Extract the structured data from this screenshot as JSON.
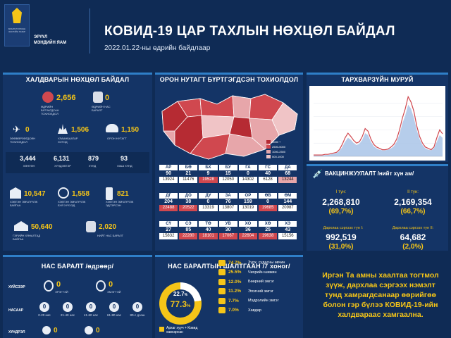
{
  "header": {
    "title": "КОВИД-19 ЦАР ТАХЛЫН НӨХЦӨЛ БАЙДАЛ",
    "subtitle": "2022.01.22-ны өдрийн байдлаар",
    "org_line1": "ЭРҮҮЛ",
    "org_line2": "МЭНДИЙН ЯАМ"
  },
  "infection": {
    "title": "ХАЛДВАРЫН НӨХЦӨЛ БАЙДАЛ",
    "confirmed_today": "2,656",
    "confirmed_today_label": "ӨДРИЙН БАТЛАГДСАН ТОХИОЛДОЛ",
    "deaths_today": "0",
    "deaths_today_label": "ӨДРИЙН НАС БАРАЛТ",
    "imported": "0",
    "imported_label": "ЗӨӨВӨРЛӨГДСӨН ТОХИОЛДОЛ",
    "ulaanbaatar": "1,506",
    "ulaanbaatar_label": "УЛААНБААТАР ХОТОД",
    "local": "1,150",
    "local_label": "ОРОН НУТАГТ",
    "row": [
      {
        "value": "3,444",
        "label": "ХӨНГӨН"
      },
      {
        "value": "6,131",
        "label": "ХҮНДЭВТЭР"
      },
      {
        "value": "879",
        "label": "ХҮНД"
      },
      {
        "value": "93",
        "label": "МАШ ХҮНД"
      }
    ],
    "hospital": "10,547",
    "hospital_label": "ХЭВТЭН ЭМЧЛҮҮЛЖ БАЙГАА",
    "children": "1,558",
    "children_label": "ХЭВТЭН ЭМЧЛҮҮЛЖ БУЙ ХҮҮХЭД",
    "discharged": "821",
    "discharged_label": "ХЭВТЭН ЭМЧЛҮҮЛЖ ЭДГЭРСЭН",
    "home": "50,640",
    "home_label": "ГЭРИЙН ХЯНАЛТАД БАЙГАА",
    "total_deaths": "2,020",
    "total_deaths_label": "НИЙТ НАС БАРАЛТ"
  },
  "regions": {
    "title": "ОРОН НУТАГТ БҮРТГЭГДСЭН ТОХИОЛДОЛ",
    "legend": [
      "АР",
      "БӨ",
      "БХ",
      "БУ",
      "ГА"
    ],
    "legend_counts": [
      "5000 +",
      "2500-5000",
      "1000-2500",
      "500-1000",
      "0-500"
    ],
    "rows": [
      [
        {
          "code": "АР",
          "today": "90",
          "total": "13924",
          "tone": "w"
        },
        {
          "code": "БӨ",
          "today": "21",
          "total": "11476",
          "tone": "w"
        },
        {
          "code": "БХ",
          "today": "9",
          "total": "19528",
          "tone": "r"
        },
        {
          "code": "БУ",
          "today": "15",
          "total": "12050",
          "tone": "w"
        },
        {
          "code": "ГА",
          "today": "0",
          "total": "14302",
          "tone": "w"
        },
        {
          "code": "ГС",
          "today": "40",
          "total": "6128",
          "tone": "w"
        },
        {
          "code": "ДА",
          "today": "68",
          "total": "13244",
          "tone": "p"
        }
      ],
      [
        {
          "code": "ДГ",
          "today": "204",
          "total": "22488",
          "tone": "r"
        },
        {
          "code": "ДО",
          "today": "38",
          "total": "20522",
          "tone": "r"
        },
        {
          "code": "ДУ",
          "today": "0",
          "total": "13319",
          "tone": "w"
        },
        {
          "code": "ЗА",
          "today": "76",
          "total": "13807",
          "tone": "w"
        },
        {
          "code": "ОР",
          "today": "159",
          "total": "13019",
          "tone": "w"
        },
        {
          "code": "ӨВ",
          "today": "0",
          "total": "19685",
          "tone": "r"
        },
        {
          "code": "ӨМ",
          "today": "144",
          "total": "20987",
          "tone": "w"
        }
      ],
      [
        {
          "code": "СҮ",
          "today": "27",
          "total": "15832",
          "tone": "w"
        },
        {
          "code": "СЭ",
          "today": "85",
          "total": "22280",
          "tone": "r"
        },
        {
          "code": "ТӨ",
          "today": "40",
          "total": "18101",
          "tone": "r"
        },
        {
          "code": "УВ",
          "today": "30",
          "total": "17067",
          "tone": "r"
        },
        {
          "code": "ХО",
          "today": "36",
          "total": "22604",
          "tone": "r"
        },
        {
          "code": "ХӨ",
          "today": "25",
          "total": "19638",
          "tone": "r"
        },
        {
          "code": "ХЭ",
          "today": "43",
          "total": "15156",
          "tone": "w"
        }
      ]
    ]
  },
  "curve": {
    "title": "ТАРХВАРЗҮЙН МУРУЙ",
    "line": [
      2,
      2,
      2,
      2,
      3,
      3,
      4,
      5,
      6,
      10,
      18,
      28,
      35,
      30,
      24,
      20,
      22,
      30,
      42,
      38,
      26,
      18,
      14,
      12,
      10,
      10,
      11,
      14,
      18,
      26,
      40,
      58,
      72,
      90,
      82,
      68,
      46,
      30,
      20,
      14,
      12,
      10,
      14,
      28,
      40,
      34
    ],
    "area": [
      1,
      1,
      1,
      1,
      2,
      2,
      3,
      4,
      5,
      8,
      14,
      22,
      28,
      25,
      20,
      17,
      19,
      25,
      35,
      32,
      22,
      15,
      12,
      10,
      9,
      9,
      10,
      12,
      15,
      22,
      34,
      50,
      62,
      78,
      72,
      58,
      40,
      26,
      17,
      12,
      10,
      9,
      12,
      22,
      32,
      28
    ]
  },
  "vaccination": {
    "title": "ВАКЦИНЖУУЛАЛТ /нийт хүн ам/",
    "dose1_label": "I тун:",
    "dose1": "2,268,810",
    "dose1_pct": "(69,7%)",
    "dose2_label": "II тун:",
    "dose2": "2,169,354",
    "dose2_pct": "(66,7%)",
    "booster1_label": "Дархлаа сэргээх тун I:",
    "booster1": "992,519",
    "booster1_pct": "(31,0%)",
    "booster2_label": "Дархлаа сэргээх тун II:",
    "booster2": "64,682",
    "booster2_pct": "(2,0%)"
  },
  "deaths_by_age": {
    "title": "НАС БАРАЛТ /өдрөөр/",
    "by_sex_label": "ХҮЙСЭЭР",
    "male": "0",
    "male_label": "ЭРЭГТЭЙ",
    "female": "0",
    "female_label": "ЭМЭГТЭЙ",
    "by_age_label": "НАСААР",
    "ages": [
      {
        "value": "0",
        "label": "0-20 нас"
      },
      {
        "value": "0",
        "label": "21-40 нас"
      },
      {
        "value": "0",
        "label": "41-60 нас"
      },
      {
        "value": "0",
        "label": "61-80 нас"
      },
      {
        "value": "0",
        "label": "80-с дээш"
      }
    ],
    "comorbid_label": "ХҮНДРЭЛ",
    "comorbid_a": "0",
    "comorbid_b": "0"
  },
  "weekly_causes": {
    "title": "НАС БАРАЛТЫН ШАЛТГААН /7 хоног/",
    "donut_outer": "22.7",
    "donut_inner": "77.3",
    "donut_pct_sign": "%",
    "legend": "Архаг хууч + Ковид хавсарсан",
    "causes": [
      {
        "pct": "74.7%",
        "label": "Зүрх, судасны өвчин"
      },
      {
        "pct": "25.5%",
        "label": "Чихрийн шижин"
      },
      {
        "pct": "12.0%",
        "label": "Бөөрний эмгэг"
      },
      {
        "pct": "11.2%",
        "label": "Элэгний эмгэг"
      },
      {
        "pct": "7.7%",
        "label": "Мэдрэлийн эмгэг"
      },
      {
        "pct": "7.0%",
        "label": "Хавдар"
      }
    ]
  },
  "message": {
    "text": "Иргэн Та амны хаалтаа тогтмол зүүж, дархлаа сэргээх нэмэлт тунд хамрагдсанаар өөрийгөө болон гэр бүлээ КОВИД-19-ийн халдвараас хамгаална."
  },
  "colors": {
    "background": "#0f2b55",
    "panel": "#143466",
    "accent": "#f5c518",
    "red": "#d0484f"
  }
}
